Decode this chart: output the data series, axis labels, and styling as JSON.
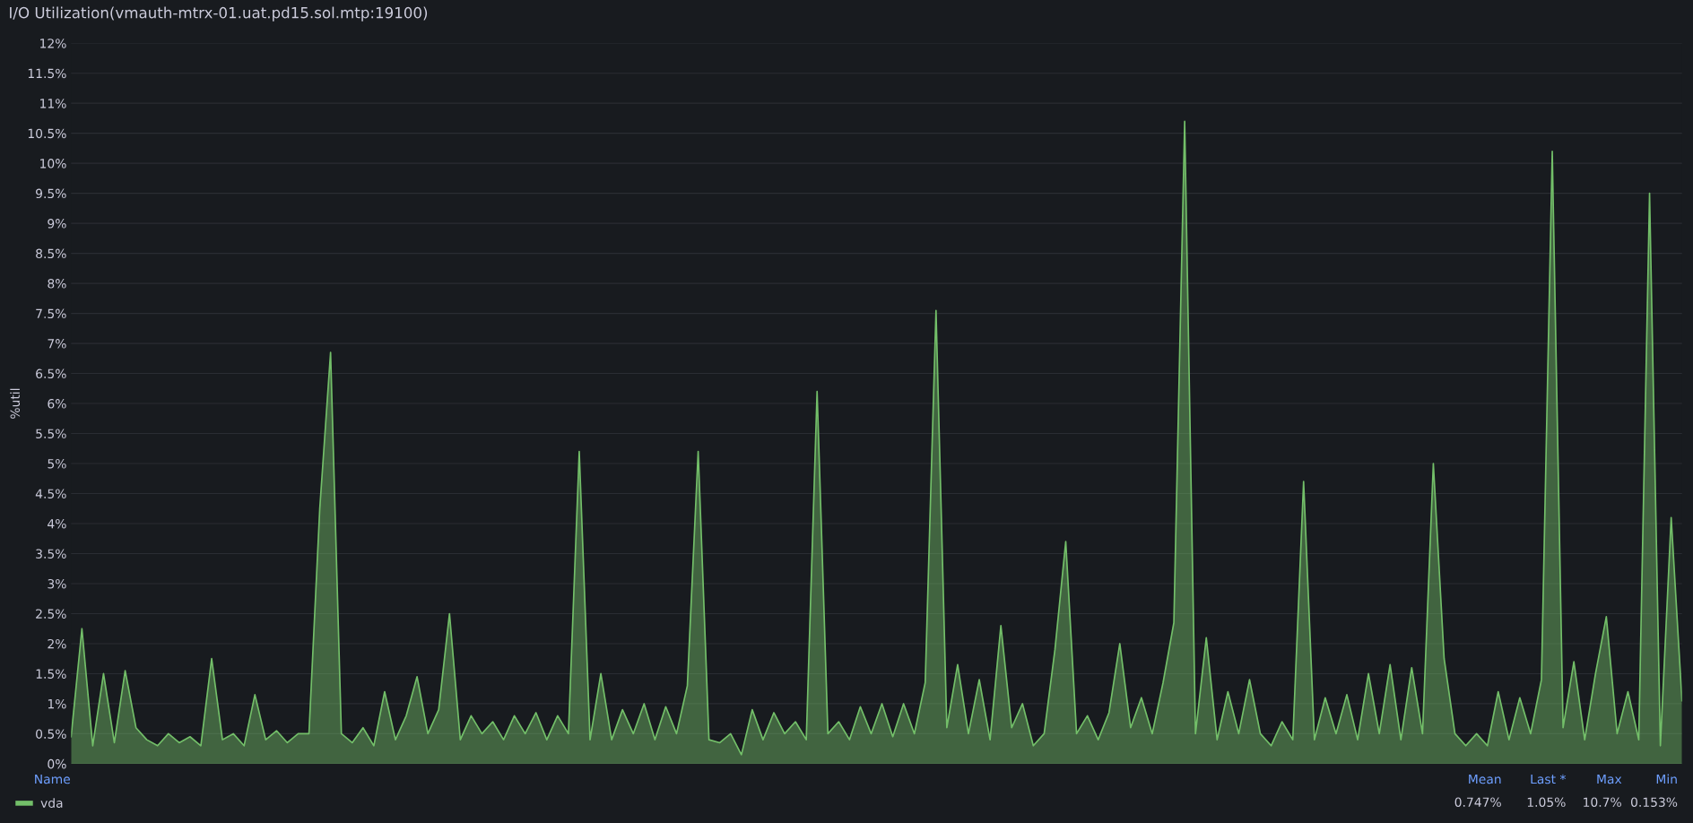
{
  "chart_data": {
    "type": "area",
    "title": "I/O Utilization(vmauth-mtrx-01.uat.pd15.sol.mtp:19100)",
    "ylabel": "%util",
    "categories": [
      null,
      null,
      null,
      null,
      null,
      null,
      null,
      null,
      null,
      null,
      null,
      null,
      null,
      null,
      null,
      null,
      null,
      null,
      null,
      null,
      null,
      null,
      null,
      null,
      null,
      null,
      null,
      null,
      null,
      null,
      null,
      null,
      null,
      null,
      null,
      null,
      null,
      null,
      null,
      null,
      null,
      null,
      null,
      null,
      null,
      null,
      null,
      null,
      null,
      null,
      null,
      null,
      null,
      null,
      null,
      null,
      null,
      null,
      null,
      null,
      null,
      null,
      null,
      null,
      null,
      null,
      null,
      null,
      null,
      null,
      null,
      null,
      null,
      null,
      null,
      null,
      null,
      null,
      null,
      null,
      null,
      null,
      null,
      null,
      null,
      null,
      null,
      null,
      null,
      null,
      null,
      null,
      null,
      null,
      null,
      null,
      null,
      null,
      null,
      null,
      null,
      null,
      null,
      null,
      null,
      null,
      null,
      null,
      null,
      null,
      null,
      null,
      null,
      null,
      null,
      null,
      null,
      null,
      null,
      null,
      null,
      null,
      null,
      null,
      null,
      null,
      null,
      null,
      null,
      null,
      null,
      null,
      null,
      null,
      null,
      null,
      null,
      null,
      null,
      null,
      null,
      null,
      null,
      null,
      null,
      null,
      null,
      null,
      null,
      null
    ],
    "series": [
      {
        "name": "vda",
        "color": "#73bf69",
        "values": [
          0.45,
          2.25,
          0.3,
          1.5,
          0.35,
          1.55,
          0.6,
          0.4,
          0.3,
          0.5,
          0.35,
          0.45,
          0.3,
          1.75,
          0.4,
          0.5,
          0.3,
          1.15,
          0.4,
          0.55,
          0.35,
          0.5,
          0.5,
          4.25,
          6.85,
          0.5,
          0.35,
          0.6,
          0.3,
          1.2,
          0.4,
          0.8,
          1.45,
          0.5,
          0.9,
          2.5,
          0.4,
          0.8,
          0.5,
          0.7,
          0.4,
          0.8,
          0.5,
          0.85,
          0.4,
          0.8,
          0.5,
          5.2,
          0.4,
          1.5,
          0.4,
          0.9,
          0.5,
          1.0,
          0.4,
          0.95,
          0.5,
          1.3,
          5.2,
          0.4,
          0.35,
          0.5,
          0.15,
          0.9,
          0.4,
          0.85,
          0.5,
          0.7,
          0.4,
          6.2,
          0.5,
          0.7,
          0.4,
          0.95,
          0.5,
          1.0,
          0.45,
          1.0,
          0.5,
          1.35,
          7.55,
          0.6,
          1.65,
          0.5,
          1.4,
          0.4,
          2.3,
          0.6,
          1.0,
          0.3,
          0.5,
          1.9,
          3.7,
          0.5,
          0.8,
          0.4,
          0.85,
          2.0,
          0.6,
          1.1,
          0.5,
          1.35,
          2.35,
          10.7,
          0.5,
          2.1,
          0.4,
          1.2,
          0.5,
          1.4,
          0.5,
          0.3,
          0.7,
          0.4,
          4.7,
          0.4,
          1.1,
          0.5,
          1.15,
          0.4,
          1.5,
          0.5,
          1.65,
          0.4,
          1.6,
          0.5,
          5.0,
          1.75,
          0.5,
          0.3,
          0.5,
          0.3,
          1.2,
          0.4,
          1.1,
          0.5,
          1.4,
          10.2,
          0.6,
          1.7,
          0.4,
          1.5,
          2.45,
          0.5,
          1.2,
          0.4,
          9.5,
          0.3,
          4.1,
          1.05
        ]
      }
    ],
    "ylim": [
      0,
      12
    ],
    "yticks": [
      {
        "value": 0,
        "label": "0%"
      },
      {
        "value": 0.5,
        "label": "0.5%"
      },
      {
        "value": 1,
        "label": "1%"
      },
      {
        "value": 1.5,
        "label": "1.5%"
      },
      {
        "value": 2,
        "label": "2%"
      },
      {
        "value": 2.5,
        "label": "2.5%"
      },
      {
        "value": 3,
        "label": "3%"
      },
      {
        "value": 3.5,
        "label": "3.5%"
      },
      {
        "value": 4,
        "label": "4%"
      },
      {
        "value": 4.5,
        "label": "4.5%"
      },
      {
        "value": 5,
        "label": "5%"
      },
      {
        "value": 5.5,
        "label": "5.5%"
      },
      {
        "value": 6,
        "label": "6%"
      },
      {
        "value": 6.5,
        "label": "6.5%"
      },
      {
        "value": 7,
        "label": "7%"
      },
      {
        "value": 7.5,
        "label": "7.5%"
      },
      {
        "value": 8,
        "label": "8%"
      },
      {
        "value": 8.5,
        "label": "8.5%"
      },
      {
        "value": 9,
        "label": "9%"
      },
      {
        "value": 9.5,
        "label": "9.5%"
      },
      {
        "value": 10,
        "label": "10%"
      },
      {
        "value": 10.5,
        "label": "10.5%"
      },
      {
        "value": 11,
        "label": "11%"
      },
      {
        "value": 11.5,
        "label": "11.5%"
      },
      {
        "value": 12,
        "label": "12%"
      }
    ],
    "grid": "y",
    "legend": "bottom",
    "tick_labels": "y",
    "annotations": [
      "Name",
      "Mean",
      "Last *",
      "Max",
      "Min",
      "0.747%",
      "1.05%",
      "10.7%",
      "0.153%"
    ]
  }
}
